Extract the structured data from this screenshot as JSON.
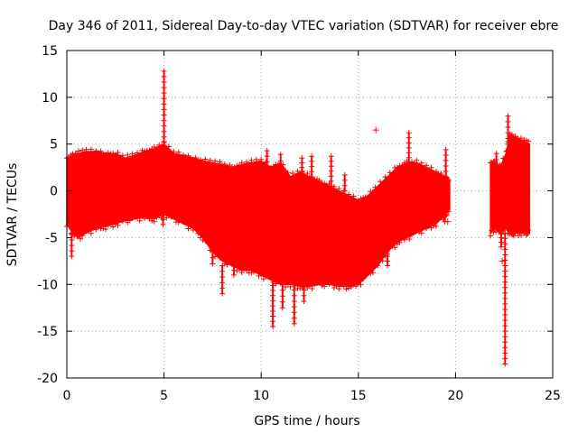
{
  "chart_data": {
    "type": "scatter",
    "title": "Day 346 of 2011, Sidereal Day-to-day VTEC variation (SDTVAR) for receiver ebre",
    "xlabel": "GPS time / hours",
    "ylabel": "SDTVAR / TECUs",
    "xlim": [
      0,
      25
    ],
    "ylim": [
      -20,
      15
    ],
    "xticks": [
      0,
      5,
      10,
      15,
      20,
      25
    ],
    "yticks": [
      -20,
      -15,
      -10,
      -5,
      0,
      5,
      10,
      15
    ],
    "grid": true,
    "marker": "+",
    "color": "#ff0000",
    "envelope": {
      "x": [
        0.0,
        0.3,
        0.6,
        1.0,
        1.5,
        2.0,
        2.5,
        3.0,
        3.5,
        4.0,
        4.5,
        5.0,
        5.5,
        6.0,
        6.5,
        7.0,
        7.5,
        8.0,
        8.5,
        9.0,
        9.5,
        10.0,
        10.5,
        11.0,
        11.5,
        12.0,
        12.5,
        13.0,
        13.5,
        14.0,
        14.5,
        15.0,
        15.5,
        16.0,
        16.5,
        17.0,
        17.5,
        18.0,
        18.5,
        19.0,
        19.5,
        19.7
      ],
      "upper": [
        3.5,
        3.8,
        4.0,
        4.2,
        4.2,
        4.0,
        4.0,
        3.5,
        3.8,
        4.2,
        4.5,
        5.0,
        4.0,
        3.8,
        3.5,
        3.2,
        3.0,
        2.8,
        2.5,
        2.8,
        3.0,
        3.2,
        2.5,
        3.0,
        1.5,
        2.0,
        1.5,
        1.0,
        0.5,
        0.0,
        -0.5,
        -1.0,
        -0.5,
        0.5,
        1.5,
        2.5,
        3.0,
        3.0,
        2.5,
        2.0,
        1.5,
        1.0
      ],
      "lower": [
        -3.5,
        -4.5,
        -5.0,
        -4.5,
        -4.0,
        -3.8,
        -3.5,
        -3.2,
        -3.0,
        -2.8,
        -3.0,
        -2.5,
        -3.0,
        -3.5,
        -4.0,
        -5.0,
        -6.5,
        -7.5,
        -8.0,
        -8.5,
        -8.5,
        -9.0,
        -9.5,
        -10.0,
        -10.0,
        -10.2,
        -10.2,
        -10.0,
        -10.0,
        -10.2,
        -10.2,
        -10.0,
        -9.0,
        -8.0,
        -6.5,
        -5.5,
        -5.0,
        -4.5,
        -4.0,
        -3.5,
        -2.5,
        -2.0
      ]
    },
    "envelope2": {
      "x": [
        21.8,
        22.0,
        22.3,
        22.6,
        22.8,
        23.0,
        23.3,
        23.6,
        23.8
      ],
      "upper": [
        3.0,
        3.0,
        2.5,
        4.0,
        6.0,
        5.8,
        5.5,
        5.2,
        5.0
      ],
      "lower": [
        -4.5,
        -4.0,
        -4.5,
        -4.0,
        -4.5,
        -4.5,
        -4.5,
        -4.5,
        -4.5
      ]
    },
    "spikes": [
      {
        "x": 0.25,
        "y0": -3.5,
        "y1": -7.0
      },
      {
        "x": 5.0,
        "y0": 4.0,
        "y1": 12.8
      },
      {
        "x": 4.95,
        "y0": -2.0,
        "y1": -3.6
      },
      {
        "x": 7.5,
        "y0": -6.5,
        "y1": -7.8
      },
      {
        "x": 8.0,
        "y0": -8.0,
        "y1": -11.0
      },
      {
        "x": 8.6,
        "y0": -8.0,
        "y1": -9.0
      },
      {
        "x": 10.3,
        "y0": 2.5,
        "y1": 4.3
      },
      {
        "x": 10.6,
        "y0": -9.0,
        "y1": -14.5
      },
      {
        "x": 11.0,
        "y0": 2.5,
        "y1": 3.9
      },
      {
        "x": 11.1,
        "y0": -10.0,
        "y1": -12.5
      },
      {
        "x": 11.7,
        "y0": -10.0,
        "y1": -14.2
      },
      {
        "x": 12.2,
        "y0": -10.0,
        "y1": -11.8
      },
      {
        "x": 12.1,
        "y0": 2.0,
        "y1": 3.5
      },
      {
        "x": 12.6,
        "y0": 1.5,
        "y1": 3.7
      },
      {
        "x": 13.6,
        "y0": 0.5,
        "y1": 3.7
      },
      {
        "x": 14.3,
        "y0": 0.0,
        "y1": 1.7
      },
      {
        "x": 16.5,
        "y0": -6.5,
        "y1": -8.0
      },
      {
        "x": 17.6,
        "y0": 3.0,
        "y1": 6.2
      },
      {
        "x": 19.5,
        "y0": 1.5,
        "y1": 4.4
      },
      {
        "x": 19.45,
        "y0": -2.0,
        "y1": -3.3
      },
      {
        "x": 22.55,
        "y0": -4.5,
        "y1": -18.5
      },
      {
        "x": 22.7,
        "y0": 5.0,
        "y1": 8.0
      },
      {
        "x": 22.1,
        "y0": 2.0,
        "y1": 4.0
      },
      {
        "x": 22.35,
        "y0": -4.5,
        "y1": -6.0
      }
    ],
    "outliers": [
      {
        "x": 15.9,
        "y": 6.5
      },
      {
        "x": 19.6,
        "y": -3.3
      },
      {
        "x": 22.4,
        "y": -7.5
      }
    ]
  }
}
